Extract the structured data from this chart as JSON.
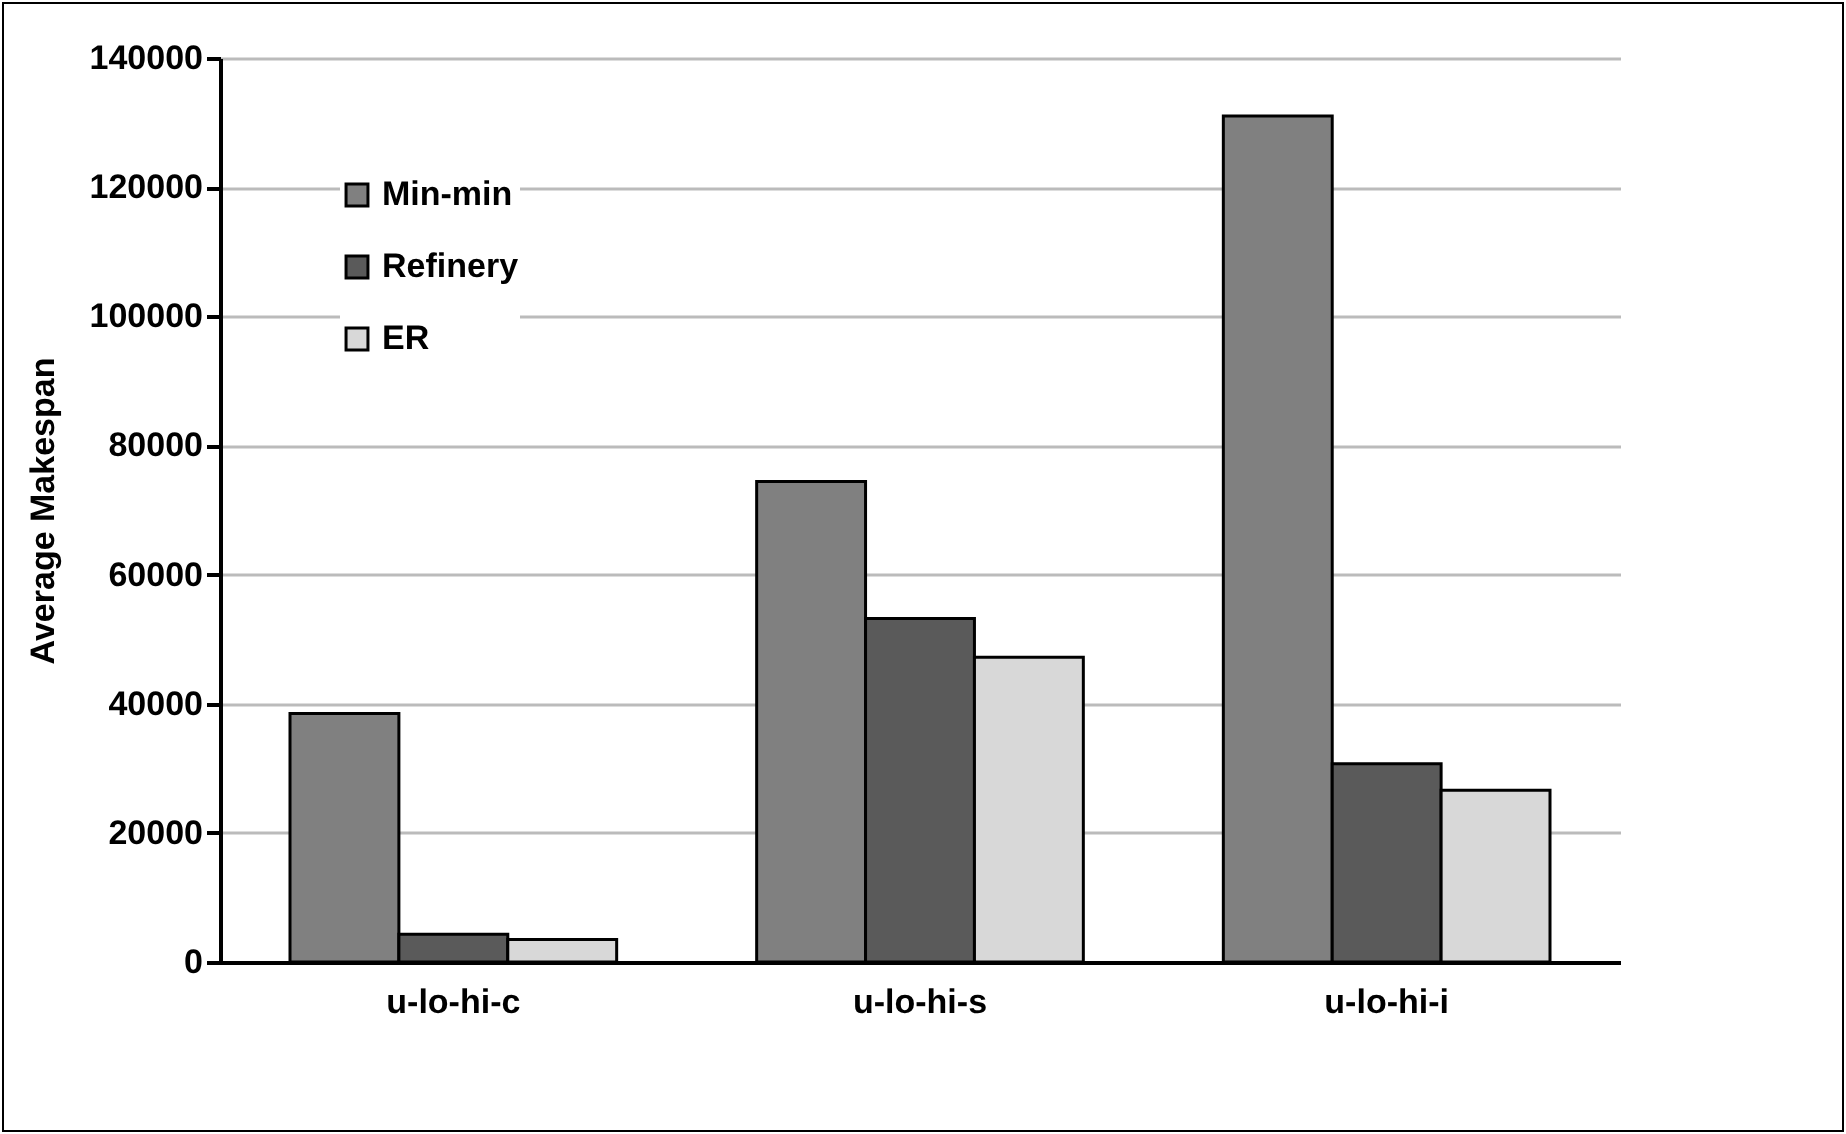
{
  "chart_data": {
    "type": "bar",
    "ylabel": "Average Makespan",
    "categories": [
      "u-lo-hi-c",
      "u-lo-hi-s",
      "u-lo-hi-i"
    ],
    "series": [
      {
        "name": "Min-min",
        "color": "#808080",
        "values": [
          38500,
          74400,
          131000
        ]
      },
      {
        "name": "Refinery",
        "color": "#5a5a5a",
        "values": [
          4300,
          53200,
          30700
        ]
      },
      {
        "name": "ER",
        "color": "#d8d8d8",
        "values": [
          3500,
          47200,
          26600
        ]
      }
    ],
    "ylim": [
      0,
      140000
    ],
    "yticks": [
      0,
      20000,
      40000,
      60000,
      80000,
      100000,
      120000,
      140000
    ],
    "grid": "y",
    "legend": "top left"
  }
}
